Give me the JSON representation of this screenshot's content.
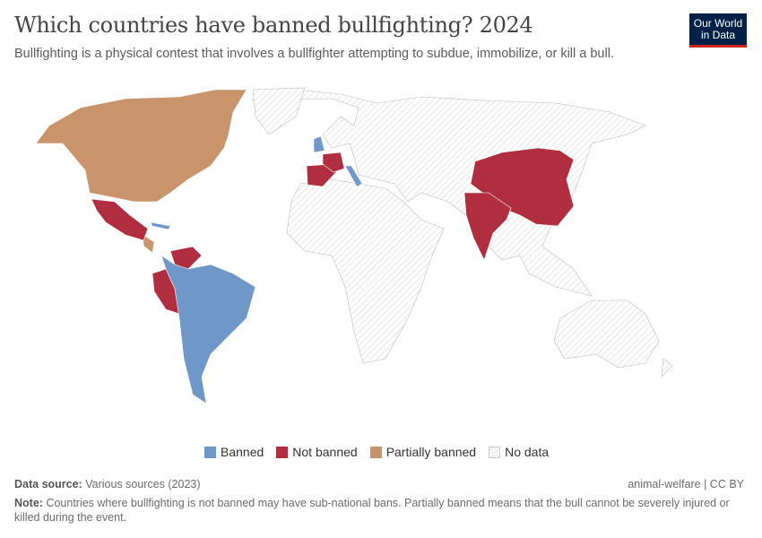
{
  "header": {
    "title": "Which countries have banned bullfighting? 2024",
    "subtitle": "Bullfighting is a physical contest that involves a bullfighter attempting to subdue, immobilize, or kill a bull.",
    "logo": "Our World in Data"
  },
  "legend": [
    {
      "label": "Banned",
      "color": "#6f97c8"
    },
    {
      "label": "Not banned",
      "color": "#b12d40"
    },
    {
      "label": "Partially banned",
      "color": "#c9946b"
    },
    {
      "label": "No data",
      "color": "hatched"
    }
  ],
  "footer": {
    "source_label": "Data source:",
    "source": "Various sources (2023)",
    "license": "animal-welfare | CC BY",
    "note_label": "Note:",
    "note": "Countries where bullfighting is not banned may have sub-national bans. Partially banned means that the bull cannot be severely injured or killed during the event."
  },
  "map_data": {
    "banned": [
      "United Kingdom",
      "Italy",
      "Cuba",
      "Colombia",
      "Brazil",
      "Bolivia",
      "Paraguay",
      "Argentina",
      "Chile",
      "Uruguay",
      "Guyana",
      "Suriname"
    ],
    "not_banned": [
      "Mexico",
      "Spain",
      "France",
      "Portugal",
      "Venezuela",
      "Ecuador",
      "Peru",
      "China",
      "India"
    ],
    "partially_banned": [
      "Canada",
      "United States",
      "Nicaragua",
      "Costa Rica"
    ]
  }
}
